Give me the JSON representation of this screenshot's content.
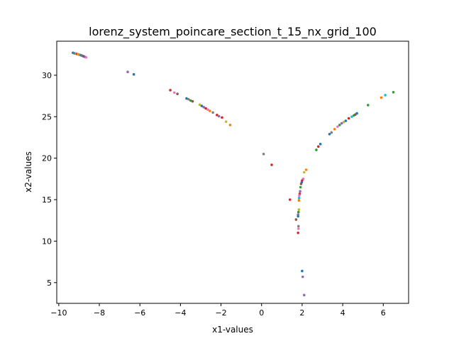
{
  "chart_data": {
    "type": "scatter",
    "title": "lorenz_system_poincare_section_t_15_nx_grid_100",
    "xlabel": "x1-values",
    "ylabel": "x2-values",
    "xlim": [
      -10.1,
      7.25
    ],
    "ylim": [
      2.5,
      34.1
    ],
    "xticks": [
      -10,
      -8,
      -6,
      -4,
      -2,
      0,
      2,
      4,
      6
    ],
    "xtick_labels": [
      "−10",
      "−8",
      "−6",
      "−4",
      "−2",
      "0",
      "2",
      "4",
      "6"
    ],
    "yticks": [
      5,
      10,
      15,
      20,
      25,
      30
    ],
    "ytick_labels": [
      "5",
      "10",
      "15",
      "20",
      "25",
      "30"
    ],
    "grid": false,
    "palette": [
      "#1f77b4",
      "#ff7f0e",
      "#2ca02c",
      "#d62728",
      "#9467bd",
      "#8c564b",
      "#e377c2",
      "#7f7f7f",
      "#bcbd22",
      "#17becf"
    ],
    "points": [
      {
        "x": -9.3,
        "y": 32.7,
        "c": 0
      },
      {
        "x": -9.25,
        "y": 32.65,
        "c": 4
      },
      {
        "x": -9.2,
        "y": 32.62,
        "c": 2
      },
      {
        "x": -9.15,
        "y": 32.6,
        "c": 6
      },
      {
        "x": -9.1,
        "y": 32.55,
        "c": 3
      },
      {
        "x": -9.05,
        "y": 32.52,
        "c": 8
      },
      {
        "x": -9.0,
        "y": 32.48,
        "c": 1
      },
      {
        "x": -8.95,
        "y": 32.45,
        "c": 9
      },
      {
        "x": -8.9,
        "y": 32.4,
        "c": 5
      },
      {
        "x": -8.85,
        "y": 32.35,
        "c": 7
      },
      {
        "x": -8.8,
        "y": 32.3,
        "c": 0
      },
      {
        "x": -8.75,
        "y": 32.25,
        "c": 3
      },
      {
        "x": -8.7,
        "y": 32.2,
        "c": 4
      },
      {
        "x": -8.65,
        "y": 32.15,
        "c": 6
      },
      {
        "x": -6.6,
        "y": 30.4,
        "c": 4
      },
      {
        "x": -6.3,
        "y": 30.1,
        "c": 0
      },
      {
        "x": -4.5,
        "y": 28.2,
        "c": 3
      },
      {
        "x": -4.3,
        "y": 27.9,
        "c": 6
      },
      {
        "x": -4.15,
        "y": 27.75,
        "c": 5
      },
      {
        "x": -3.7,
        "y": 27.2,
        "c": 0
      },
      {
        "x": -3.6,
        "y": 27.1,
        "c": 7
      },
      {
        "x": -3.5,
        "y": 26.95,
        "c": 2
      },
      {
        "x": -3.4,
        "y": 26.85,
        "c": 5
      },
      {
        "x": -3.05,
        "y": 26.45,
        "c": 8
      },
      {
        "x": -2.95,
        "y": 26.3,
        "c": 0
      },
      {
        "x": -2.85,
        "y": 26.15,
        "c": 4
      },
      {
        "x": -2.75,
        "y": 26.0,
        "c": 3
      },
      {
        "x": -2.65,
        "y": 25.85,
        "c": 6
      },
      {
        "x": -2.55,
        "y": 25.7,
        "c": 1
      },
      {
        "x": -2.4,
        "y": 25.5,
        "c": 7
      },
      {
        "x": -2.2,
        "y": 25.2,
        "c": 3
      },
      {
        "x": -2.1,
        "y": 25.05,
        "c": 4
      },
      {
        "x": -1.95,
        "y": 24.9,
        "c": 3
      },
      {
        "x": -1.75,
        "y": 24.4,
        "c": 8
      },
      {
        "x": -1.55,
        "y": 24.0,
        "c": 1
      },
      {
        "x": 0.1,
        "y": 20.5,
        "c": 7
      },
      {
        "x": 0.5,
        "y": 19.2,
        "c": 3
      },
      {
        "x": 2.2,
        "y": 18.6,
        "c": 1
      },
      {
        "x": 2.1,
        "y": 18.3,
        "c": 8
      },
      {
        "x": 2.05,
        "y": 17.5,
        "c": 6
      },
      {
        "x": 2.0,
        "y": 17.3,
        "c": 3
      },
      {
        "x": 1.98,
        "y": 17.1,
        "c": 0
      },
      {
        "x": 1.95,
        "y": 16.9,
        "c": 5
      },
      {
        "x": 1.92,
        "y": 16.5,
        "c": 2
      },
      {
        "x": 1.9,
        "y": 16.0,
        "c": 4
      },
      {
        "x": 1.88,
        "y": 15.7,
        "c": 3
      },
      {
        "x": 1.86,
        "y": 15.5,
        "c": 6
      },
      {
        "x": 1.85,
        "y": 15.2,
        "c": 9
      },
      {
        "x": 1.4,
        "y": 15.0,
        "c": 3
      },
      {
        "x": 1.84,
        "y": 14.9,
        "c": 1
      },
      {
        "x": 1.84,
        "y": 13.8,
        "c": 8
      },
      {
        "x": 1.82,
        "y": 13.5,
        "c": 2
      },
      {
        "x": 1.8,
        "y": 13.2,
        "c": 4
      },
      {
        "x": 1.8,
        "y": 13.0,
        "c": 0
      },
      {
        "x": 1.7,
        "y": 12.6,
        "c": 5
      },
      {
        "x": 1.82,
        "y": 11.8,
        "c": 7
      },
      {
        "x": 1.82,
        "y": 11.5,
        "c": 6
      },
      {
        "x": 1.8,
        "y": 11.0,
        "c": 3
      },
      {
        "x": 2.0,
        "y": 6.4,
        "c": 0
      },
      {
        "x": 2.03,
        "y": 5.7,
        "c": 4
      },
      {
        "x": 2.1,
        "y": 3.5,
        "c": 4
      },
      {
        "x": 2.7,
        "y": 21.0,
        "c": 2
      },
      {
        "x": 2.8,
        "y": 21.4,
        "c": 3
      },
      {
        "x": 2.9,
        "y": 21.7,
        "c": 0
      },
      {
        "x": 3.35,
        "y": 22.9,
        "c": 0
      },
      {
        "x": 3.45,
        "y": 23.1,
        "c": 7
      },
      {
        "x": 3.6,
        "y": 23.5,
        "c": 1
      },
      {
        "x": 3.75,
        "y": 23.8,
        "c": 6
      },
      {
        "x": 3.85,
        "y": 24.0,
        "c": 2
      },
      {
        "x": 3.95,
        "y": 24.2,
        "c": 4
      },
      {
        "x": 4.05,
        "y": 24.35,
        "c": 8
      },
      {
        "x": 4.15,
        "y": 24.5,
        "c": 0
      },
      {
        "x": 4.3,
        "y": 24.8,
        "c": 3
      },
      {
        "x": 4.45,
        "y": 25.0,
        "c": 9
      },
      {
        "x": 4.55,
        "y": 25.15,
        "c": 2
      },
      {
        "x": 4.62,
        "y": 25.25,
        "c": 5
      },
      {
        "x": 4.7,
        "y": 25.4,
        "c": 0
      },
      {
        "x": 5.25,
        "y": 26.4,
        "c": 2
      },
      {
        "x": 5.9,
        "y": 27.3,
        "c": 1
      },
      {
        "x": 6.1,
        "y": 27.6,
        "c": 9
      },
      {
        "x": 6.5,
        "y": 27.95,
        "c": 2
      }
    ]
  }
}
